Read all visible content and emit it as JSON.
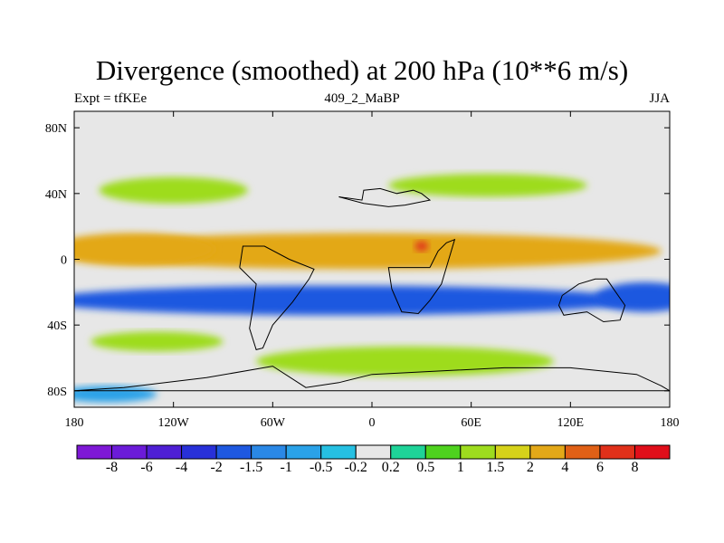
{
  "header": {
    "title": "Divergence (smoothed) at 200 hPa (10**6 m/s)",
    "left_subtitle": "Expt = tfKEe",
    "center_subtitle": "409_2_MaBP",
    "right_subtitle": "JJA"
  },
  "chart_data": {
    "type": "heatmap",
    "title": "Divergence (smoothed) at 200 hPa (10**6 m/s)",
    "x_ticks": [
      {
        "value": -180,
        "label": "180"
      },
      {
        "value": -120,
        "label": "120W"
      },
      {
        "value": -60,
        "label": "60W"
      },
      {
        "value": 0,
        "label": "0"
      },
      {
        "value": 60,
        "label": "60E"
      },
      {
        "value": 120,
        "label": "120E"
      },
      {
        "value": 180,
        "label": "180"
      }
    ],
    "y_ticks": [
      {
        "value": 80,
        "label": "80N"
      },
      {
        "value": 40,
        "label": "40N"
      },
      {
        "value": 0,
        "label": "0"
      },
      {
        "value": -40,
        "label": "40S"
      },
      {
        "value": -80,
        "label": "80S"
      }
    ],
    "xlim": [
      -180,
      180
    ],
    "ylim": [
      -90,
      90
    ],
    "colorbar": {
      "boundaries": [
        "-8",
        "-6",
        "-4",
        "-2",
        "-1.5",
        "-1",
        "-0.5",
        "-0.2",
        "0.2",
        "0.5",
        "1",
        "1.5",
        "2",
        "4",
        "6",
        "8"
      ],
      "colors": [
        "#7e18d6",
        "#6b1bd8",
        "#4e1fd4",
        "#2830d8",
        "#1e58e0",
        "#2a88e6",
        "#2aa2e8",
        "#26c0e2",
        "#e7e7e7",
        "#1ed398",
        "#4ed21e",
        "#9edc1e",
        "#d6d21a",
        "#e3a818",
        "#e06016",
        "#e0301a",
        "#e00e1a"
      ]
    },
    "regions": [
      {
        "name": "tropical-north-divergence",
        "level": "2",
        "lon": -5,
        "lat": 5,
        "w": 180,
        "h": 11
      },
      {
        "name": "tropical-north-divergence-west",
        "level": "2",
        "lon": -145,
        "lat": 6,
        "w": 50,
        "h": 10
      },
      {
        "name": "divergence-max-africa",
        "level": "6",
        "lon": 30,
        "lat": 8,
        "w": 4,
        "h": 3
      },
      {
        "name": "equatorial-convergence-band",
        "level": "-2",
        "lon": -20,
        "lat": -25,
        "w": 180,
        "h": 9
      },
      {
        "name": "equatorial-convergence-east",
        "level": "-2",
        "lon": 165,
        "lat": -23,
        "w": 30,
        "h": 9
      },
      {
        "name": "nh-midlat-divergence-atlantic",
        "level": "1",
        "lon": -120,
        "lat": 42,
        "w": 45,
        "h": 8
      },
      {
        "name": "nh-midlat-divergence-asia",
        "level": "1",
        "lon": 70,
        "lat": 45,
        "w": 60,
        "h": 7
      },
      {
        "name": "sh-midlat-divergence",
        "level": "1",
        "lon": 20,
        "lat": -62,
        "w": 90,
        "h": 9
      },
      {
        "name": "sh-subtropic-divergence",
        "level": "1",
        "lon": -130,
        "lat": -50,
        "w": 40,
        "h": 6
      },
      {
        "name": "sh-polar-convergence",
        "level": "-1",
        "lon": -160,
        "lat": -82,
        "w": 30,
        "h": 5
      }
    ]
  }
}
